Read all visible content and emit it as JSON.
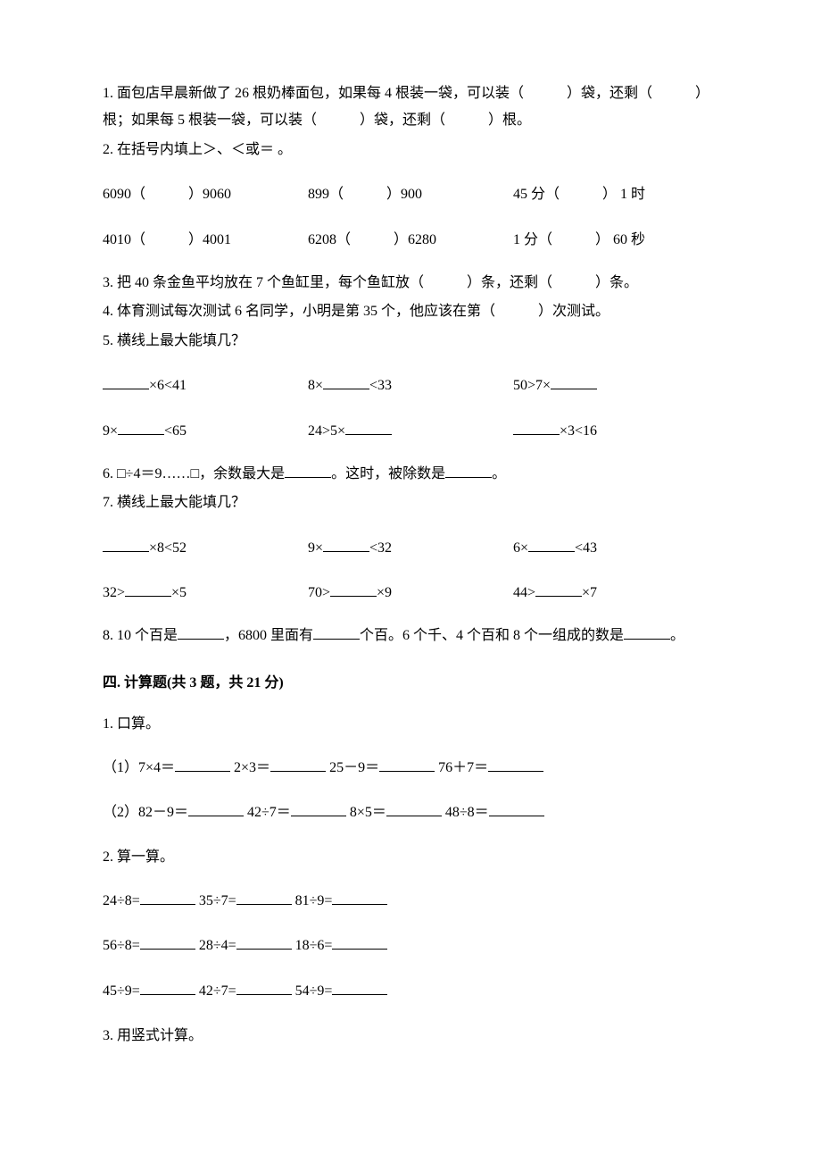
{
  "q1": "1. 面包店早晨新做了 26 根奶棒面包，如果每 4 根装一袋，可以装（　　　）袋，还剩（　　　）根；如果每 5 根装一袋，可以装（　　　）袋，还剩（　　　）根。",
  "q2_head": "2. 在括号内填上＞、＜或＝ 。",
  "q2_r1c1": "6090（　　　）9060",
  "q2_r1c2": "899（　　　）900",
  "q2_r1c3": "45 分（　　　） 1 时",
  "q2_r2c1": "4010（　　　）4001",
  "q2_r2c2": "6208（　　　）6280",
  "q2_r2c3": "1 分（　　　） 60 秒",
  "q3": "3. 把 40 条金鱼平均放在 7 个鱼缸里，每个鱼缸放（　　　）条，还剩（　　　）条。",
  "q4": "4. 体育测试每次测试 6 名同学，小明是第 35 个，他应该在第（　　　）次测试。",
  "q5_head": "5. 横线上最大能填几？",
  "q5_r1c1a": "",
  "q5_r1c1b": "×6<41",
  "q5_r1c2a": "8×",
  "q5_r1c2b": "<33",
  "q5_r1c3a": "50>7×",
  "q5_r1c3b": "",
  "q5_r2c1a": "9×",
  "q5_r2c1b": "<65",
  "q5_r2c2a": "24>5×",
  "q5_r2c2b": "",
  "q5_r2c3a": "",
  "q5_r2c3b": "×3<16",
  "q6a": "6. □÷4＝9……□，余数最大是",
  "q6b": "。这时，被除数是",
  "q6c": "。",
  "q7_head": "7. 横线上最大能填几？",
  "q7_r1c1a": "",
  "q7_r1c1b": "×8<52",
  "q7_r1c2a": "9×",
  "q7_r1c2b": "<32",
  "q7_r1c3a": "6×",
  "q7_r1c3b": "<43",
  "q7_r2c1a": "32>",
  "q7_r2c1b": "×5",
  "q7_r2c2a": "70>",
  "q7_r2c2b": "×9",
  "q7_r2c3a": "44>",
  "q7_r2c3b": "×7",
  "q8a": "8. 10 个百是",
  "q8b": "，6800 里面有",
  "q8c": "个百。6 个千、4 个百和 8 个一组成的数是",
  "q8d": "。",
  "sec4_title": "四. 计算题(共 3 题，共 21 分)",
  "s4_q1": "1. 口算。",
  "s4_q1_r1a": "（1）7×4＝",
  "s4_q1_r1b": " 2×3＝",
  "s4_q1_r1c": " 25－9＝",
  "s4_q1_r1d": " 76＋7＝",
  "s4_q1_r2a": "（2）82－9＝",
  "s4_q1_r2b": " 42÷7＝",
  "s4_q1_r2c": " 8×5＝",
  "s4_q1_r2d": " 48÷8＝",
  "s4_q2": "2. 算一算。",
  "s4_q2_r1a": "24÷8=",
  "s4_q2_r1b": " 35÷7=",
  "s4_q2_r1c": " 81÷9=",
  "s4_q2_r2a": "56÷8=",
  "s4_q2_r2b": " 28÷4=",
  "s4_q2_r2c": " 18÷6=",
  "s4_q2_r3a": "45÷9=",
  "s4_q2_r3b": " 42÷7=",
  "s4_q2_r3c": " 54÷9=",
  "s4_q3": "3. 用竖式计算。"
}
